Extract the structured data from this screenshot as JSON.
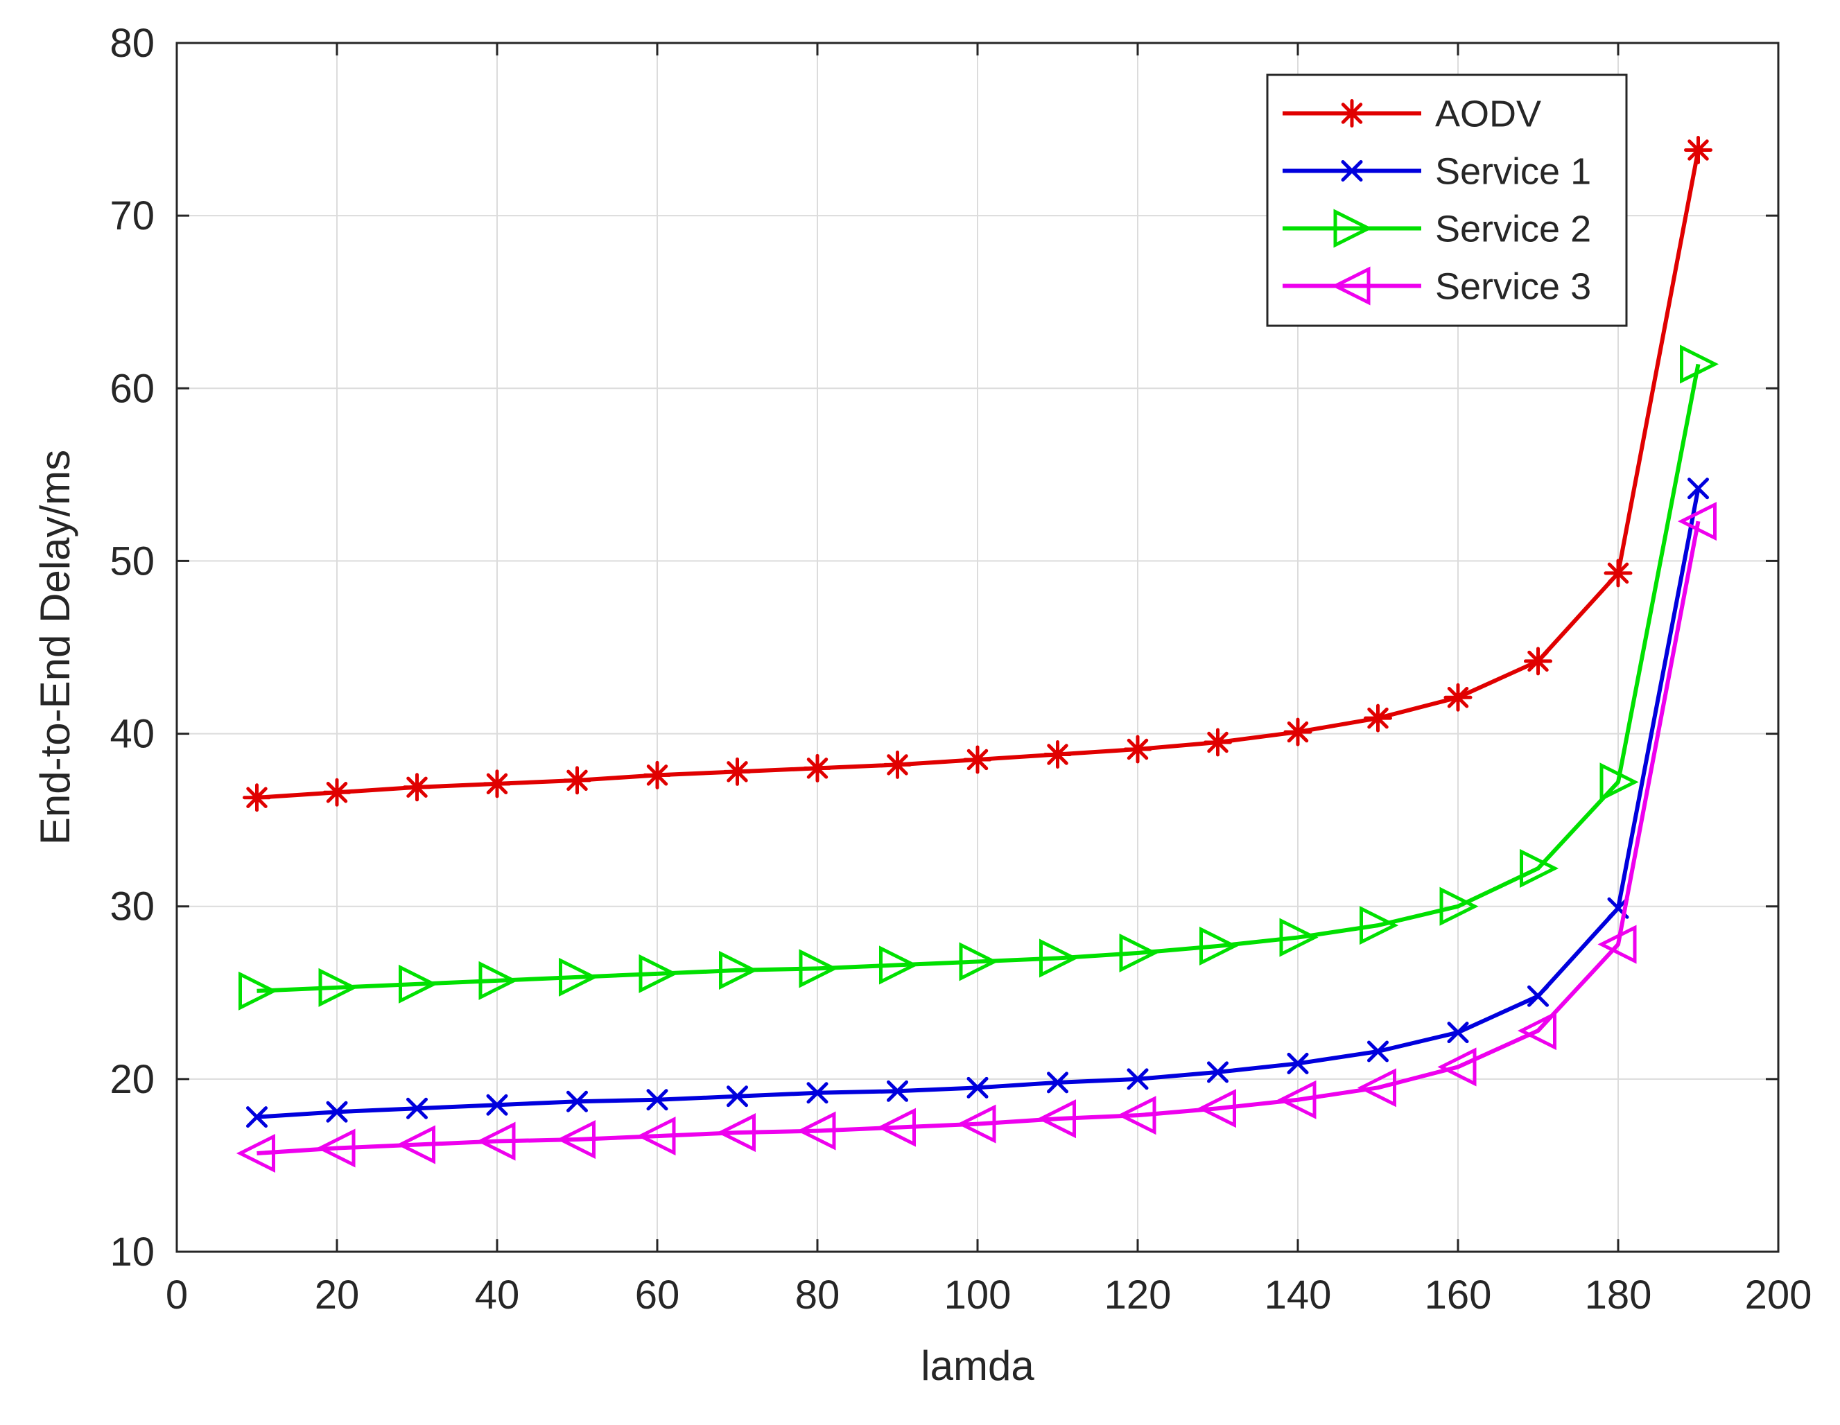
{
  "chart_data": {
    "type": "line",
    "title": "",
    "xlabel": "lamda",
    "ylabel": "End-to-End Delay/ms",
    "xlim": [
      0,
      200
    ],
    "ylim": [
      10,
      80
    ],
    "xticks": [
      0,
      20,
      40,
      60,
      80,
      100,
      120,
      140,
      160,
      180,
      200
    ],
    "yticks": [
      10,
      20,
      30,
      40,
      50,
      60,
      70,
      80
    ],
    "grid": true,
    "legend_position": "top-right",
    "x": [
      10,
      20,
      30,
      40,
      50,
      60,
      70,
      80,
      90,
      100,
      110,
      120,
      130,
      140,
      150,
      160,
      170,
      180,
      190
    ],
    "series": [
      {
        "name": "AODV",
        "color": "#e00000",
        "marker": "asterisk",
        "values": [
          36.3,
          36.6,
          36.9,
          37.1,
          37.3,
          37.6,
          37.8,
          38.0,
          38.2,
          38.5,
          38.8,
          39.1,
          39.5,
          40.1,
          40.9,
          42.1,
          44.2,
          49.3,
          73.8
        ]
      },
      {
        "name": "Service 1",
        "color": "#0000dd",
        "marker": "x",
        "values": [
          17.8,
          18.1,
          18.3,
          18.5,
          18.7,
          18.8,
          19.0,
          19.2,
          19.3,
          19.5,
          19.8,
          20.0,
          20.4,
          20.9,
          21.6,
          22.7,
          24.8,
          29.9,
          54.2
        ]
      },
      {
        "name": "Service 2",
        "color": "#00e000",
        "marker": "triangle-right",
        "values": [
          25.1,
          25.3,
          25.5,
          25.7,
          25.9,
          26.1,
          26.3,
          26.4,
          26.6,
          26.8,
          27.0,
          27.3,
          27.7,
          28.2,
          28.9,
          30.0,
          32.2,
          37.2,
          61.4
        ]
      },
      {
        "name": "Service 3",
        "color": "#ee00ee",
        "marker": "triangle-left",
        "values": [
          15.7,
          16.0,
          16.2,
          16.4,
          16.5,
          16.7,
          16.9,
          17.0,
          17.2,
          17.4,
          17.7,
          17.9,
          18.3,
          18.8,
          19.5,
          20.7,
          22.8,
          27.8,
          52.3
        ]
      }
    ]
  }
}
